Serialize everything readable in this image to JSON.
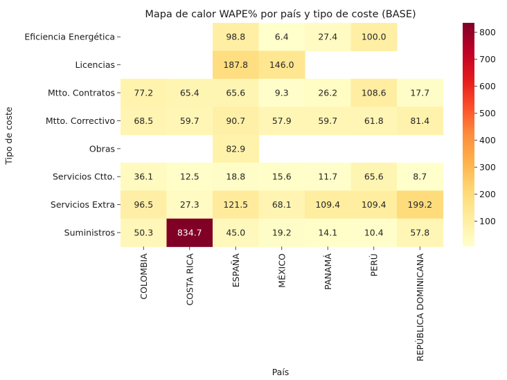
{
  "chart_data": {
    "type": "heatmap",
    "title": "Mapa de calor WAPE% por país y tipo de coste (BASE)",
    "xlabel": "País",
    "ylabel": "Tipo de coste",
    "columns": [
      "COLOMBIA",
      "COSTA RICA",
      "ESPAÑA",
      "MÉXICO",
      "PANAMÁ",
      "PERÚ",
      "REPÚBLICA DOMINICANA"
    ],
    "rows": [
      "Eficiencia Energética",
      "Licencias",
      "Mtto. Contratos",
      "Mtto. Correctivo",
      "Obras",
      "Servicios Ctto.",
      "Servicios Extra",
      "Suministros"
    ],
    "values": [
      [
        null,
        null,
        98.8,
        6.4,
        27.4,
        100.0,
        null
      ],
      [
        null,
        null,
        187.8,
        146.0,
        null,
        null,
        null
      ],
      [
        77.2,
        65.4,
        65.6,
        9.3,
        26.2,
        108.6,
        17.7
      ],
      [
        68.5,
        59.7,
        90.7,
        57.9,
        59.7,
        61.8,
        81.4
      ],
      [
        null,
        null,
        82.9,
        null,
        null,
        null,
        null
      ],
      [
        36.1,
        12.5,
        18.8,
        15.6,
        11.7,
        65.6,
        8.7
      ],
      [
        96.5,
        27.3,
        121.5,
        68.1,
        109.4,
        109.4,
        199.2
      ],
      [
        50.3,
        834.7,
        45.0,
        19.2,
        14.1,
        10.4,
        57.8
      ]
    ],
    "value_format": "one decimal",
    "colormap": "YlOrRd",
    "colorbar": {
      "range": [
        6.4,
        834.7
      ],
      "ticks": [
        100,
        200,
        300,
        400,
        500,
        600,
        700,
        800
      ]
    },
    "grid": false,
    "legend": "colorbar on the right"
  }
}
